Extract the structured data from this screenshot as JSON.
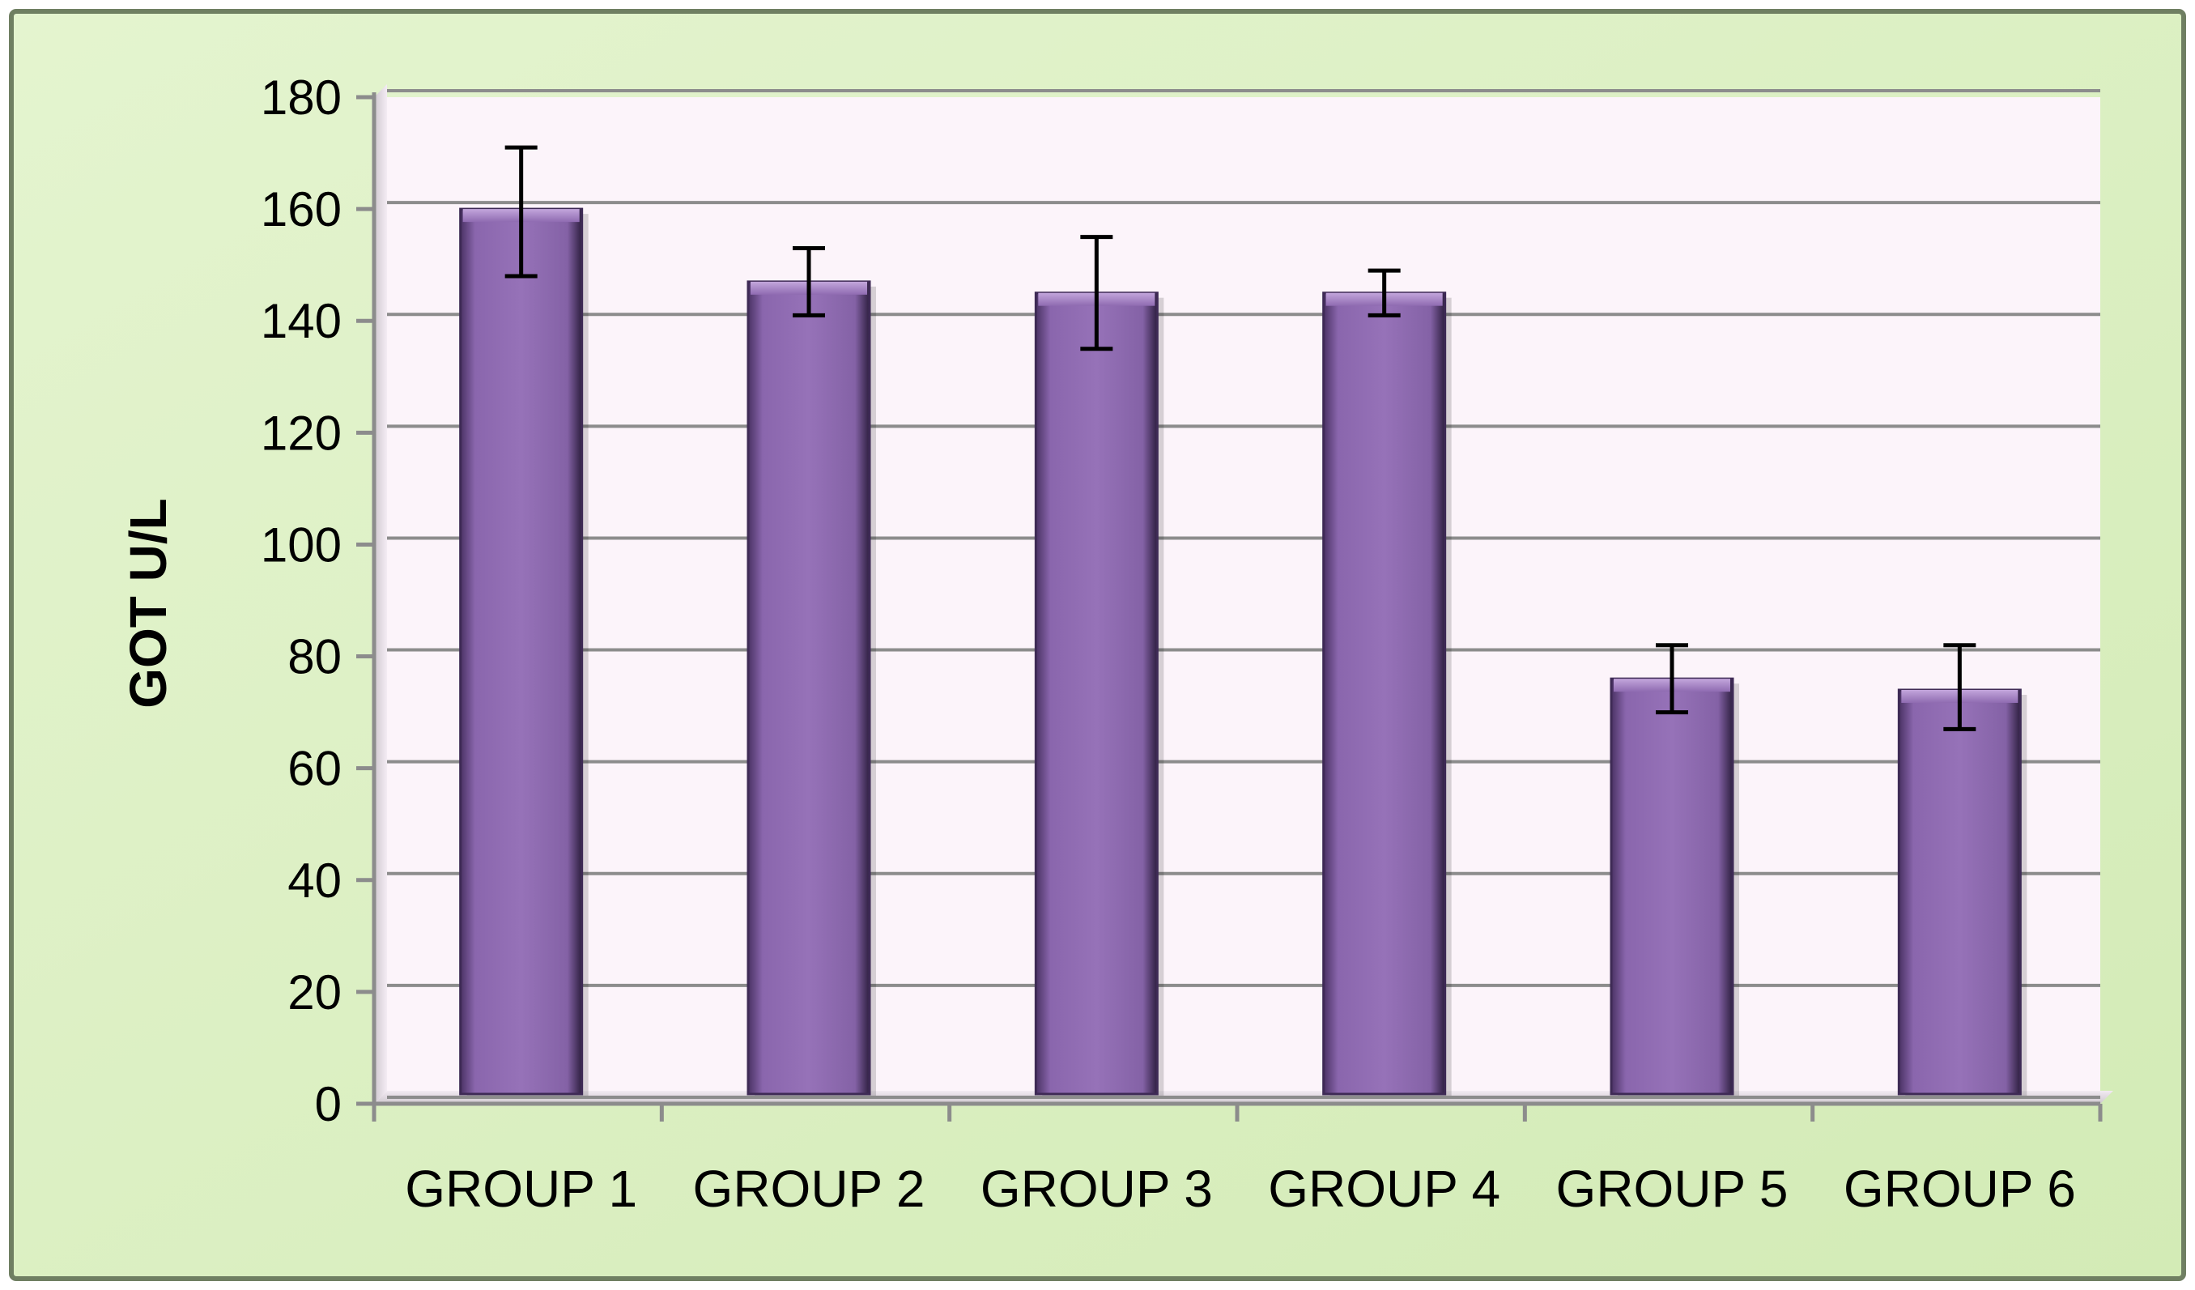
{
  "colors": {
    "outer_background": "#dcf0c4",
    "plot_background": "#fcf4fa",
    "bar_fill": "#8f6bb1",
    "bar_dark": "#3e2a55",
    "gridline": "#8c8c8c",
    "error_bar": "#000000"
  },
  "chart_data": {
    "type": "bar",
    "title": "",
    "xlabel": "",
    "ylabel": "GOT U/L",
    "ylim": [
      0,
      180
    ],
    "ytick_step": 20,
    "ytick_labels": [
      "0",
      "20",
      "40",
      "60",
      "80",
      "100",
      "120",
      "140",
      "160",
      "180"
    ],
    "grid": true,
    "legend": "none",
    "categories": [
      "GROUP 1",
      "GROUP 2",
      "GROUP 3",
      "GROUP 4",
      "GROUP 5",
      "GROUP 6"
    ],
    "values": [
      160,
      147,
      145,
      145,
      76,
      74
    ],
    "error_upper": [
      171,
      153,
      155,
      149,
      82,
      82
    ],
    "error_lower": [
      148,
      141,
      135,
      141,
      70,
      67
    ]
  }
}
